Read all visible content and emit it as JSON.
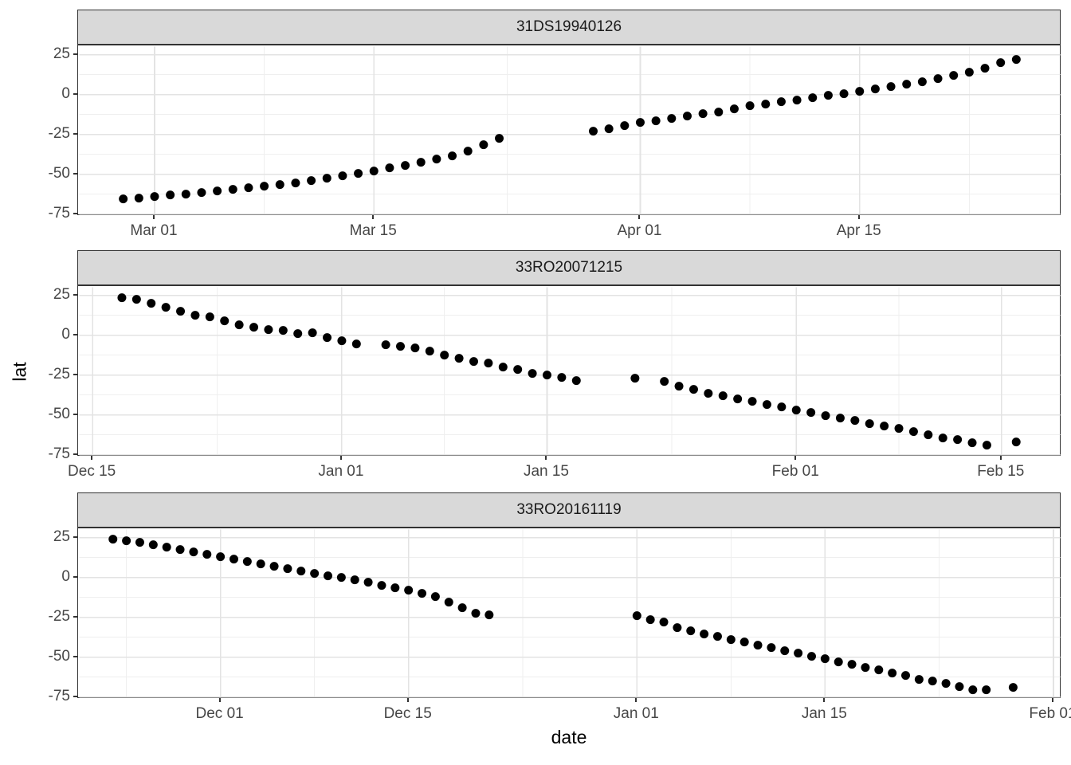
{
  "figure": {
    "ylabel": "lat",
    "xlabel": "date",
    "colors": {
      "background": "#ffffff",
      "strip_background": "#d9d9d9",
      "border": "#333333",
      "grid_major": "#e3e3e3",
      "grid_minor": "#efefef",
      "point": "#000000",
      "tick_label": "#474747",
      "axis_title": "#000000",
      "strip_text": "#1a1a1a"
    }
  },
  "chart_data": {
    "type": "scatter",
    "xlabel": "date",
    "ylabel": "lat",
    "grid": true,
    "legend": "none",
    "facet_layout": "rows",
    "y_ticks": [
      25,
      0,
      -25,
      -50,
      -75
    ],
    "y_minor_ticks": [
      12.5,
      -12.5,
      -37.5,
      -62.5
    ],
    "ylim": [
      -76,
      30
    ],
    "facets": [
      {
        "title": "31DS19940126",
        "months": [
          [
            "Feb",
            28
          ],
          [
            "Mar",
            31
          ],
          [
            "Apr",
            30
          ]
        ],
        "x_domain": [
          "Feb 24.2",
          "Apr 27.8"
        ],
        "x_ticks": [
          "Mar 01",
          "Mar 15",
          "Apr 01",
          "Apr 15"
        ],
        "points": [
          [
            "Feb 27",
            -65.5
          ],
          [
            "Feb 28",
            -65
          ],
          [
            "Mar 01",
            -64
          ],
          [
            "Mar 02",
            -63
          ],
          [
            "Mar 03",
            -62.5
          ],
          [
            "Mar 04",
            -61.5
          ],
          [
            "Mar 05",
            -60.5
          ],
          [
            "Mar 06",
            -59.5
          ],
          [
            "Mar 07",
            -58.5
          ],
          [
            "Mar 08",
            -57.5
          ],
          [
            "Mar 09",
            -56.5
          ],
          [
            "Mar 10",
            -55.5
          ],
          [
            "Mar 11",
            -54
          ],
          [
            "Mar 12",
            -52.5
          ],
          [
            "Mar 13",
            -51
          ],
          [
            "Mar 14",
            -49.5
          ],
          [
            "Mar 15",
            -48
          ],
          [
            "Mar 16",
            -46
          ],
          [
            "Mar 17",
            -44.5
          ],
          [
            "Mar 18",
            -42.5
          ],
          [
            "Mar 19",
            -40.5
          ],
          [
            "Mar 20",
            -38.5
          ],
          [
            "Mar 21",
            -35.5
          ],
          [
            "Mar 22",
            -31.5
          ],
          [
            "Mar 23",
            -27.5
          ],
          [
            "Mar 29",
            -23
          ],
          [
            "Mar 30",
            -21.5
          ],
          [
            "Mar 31",
            -19.5
          ],
          [
            "Apr 01",
            -17.5
          ],
          [
            "Apr 02",
            -16.5
          ],
          [
            "Apr 03",
            -15
          ],
          [
            "Apr 04",
            -13.5
          ],
          [
            "Apr 05",
            -12
          ],
          [
            "Apr 06",
            -11
          ],
          [
            "Apr 07",
            -9
          ],
          [
            "Apr 08",
            -7
          ],
          [
            "Apr 09",
            -6
          ],
          [
            "Apr 10",
            -4.5
          ],
          [
            "Apr 11",
            -3.5
          ],
          [
            "Apr 12",
            -2
          ],
          [
            "Apr 13",
            -0.5
          ],
          [
            "Apr 14",
            0.5
          ],
          [
            "Apr 15",
            2
          ],
          [
            "Apr 16",
            3.5
          ],
          [
            "Apr 17",
            5
          ],
          [
            "Apr 18",
            6.5
          ],
          [
            "Apr 19",
            8
          ],
          [
            "Apr 20",
            10
          ],
          [
            "Apr 21",
            12
          ],
          [
            "Apr 22",
            14
          ],
          [
            "Apr 23",
            16.5
          ],
          [
            "Apr 24",
            20
          ],
          [
            "Apr 25",
            22
          ]
        ]
      },
      {
        "title": "33RO20071215",
        "months": [
          [
            "Dec",
            31
          ],
          [
            "Jan",
            31
          ],
          [
            "Feb",
            29
          ]
        ],
        "x_domain": [
          "Dec 14.1",
          "Feb 19"
        ],
        "x_ticks": [
          "Dec 15",
          "Jan 01",
          "Jan 15",
          "Feb 01",
          "Feb 15"
        ],
        "points": [
          [
            "Dec 17",
            23.5
          ],
          [
            "Dec 18",
            22.5
          ],
          [
            "Dec 19",
            20
          ],
          [
            "Dec 20",
            17.5
          ],
          [
            "Dec 21",
            15
          ],
          [
            "Dec 22",
            12.5
          ],
          [
            "Dec 23",
            11.5
          ],
          [
            "Dec 24",
            9
          ],
          [
            "Dec 25",
            6.5
          ],
          [
            "Dec 26",
            5
          ],
          [
            "Dec 27",
            3.5
          ],
          [
            "Dec 28",
            3
          ],
          [
            "Dec 29",
            1
          ],
          [
            "Dec 30",
            1.5
          ],
          [
            "Dec 31",
            -1.5
          ],
          [
            "Jan 01",
            -3.5
          ],
          [
            "Jan 02",
            -5.5
          ],
          [
            "Jan 04",
            -6
          ],
          [
            "Jan 05",
            -7
          ],
          [
            "Jan 06",
            -8
          ],
          [
            "Jan 07",
            -10
          ],
          [
            "Jan 08",
            -12.5
          ],
          [
            "Jan 09",
            -14.5
          ],
          [
            "Jan 10",
            -16.5
          ],
          [
            "Jan 11",
            -17.5
          ],
          [
            "Jan 12",
            -20
          ],
          [
            "Jan 13",
            -21.5
          ],
          [
            "Jan 14",
            -24
          ],
          [
            "Jan 15",
            -25
          ],
          [
            "Jan 16",
            -26.5
          ],
          [
            "Jan 17",
            -28.5
          ],
          [
            "Jan 21",
            -27
          ],
          [
            "Jan 23",
            -29
          ],
          [
            "Jan 24",
            -32
          ],
          [
            "Jan 25",
            -34
          ],
          [
            "Jan 26",
            -36.5
          ],
          [
            "Jan 27",
            -38
          ],
          [
            "Jan 28",
            -40
          ],
          [
            "Jan 29",
            -41.5
          ],
          [
            "Jan 30",
            -43.5
          ],
          [
            "Jan 31",
            -45
          ],
          [
            "Feb 01",
            -47
          ],
          [
            "Feb 02",
            -48.5
          ],
          [
            "Feb 03",
            -50.5
          ],
          [
            "Feb 04",
            -52
          ],
          [
            "Feb 05",
            -53.5
          ],
          [
            "Feb 06",
            -55.5
          ],
          [
            "Feb 07",
            -57
          ],
          [
            "Feb 08",
            -58.5
          ],
          [
            "Feb 09",
            -60.5
          ],
          [
            "Feb 10",
            -62.5
          ],
          [
            "Feb 11",
            -64.5
          ],
          [
            "Feb 12",
            -65.5
          ],
          [
            "Feb 13",
            -67.5
          ],
          [
            "Feb 14",
            -69
          ],
          [
            "Feb 16",
            -67
          ]
        ]
      },
      {
        "title": "33RO20161119",
        "months": [
          [
            "Nov",
            30
          ],
          [
            "Dec",
            31
          ],
          [
            "Jan",
            31
          ],
          [
            "Feb",
            28
          ]
        ],
        "x_domain": [
          "Nov 20.5",
          "Feb 01.5"
        ],
        "x_ticks": [
          "Dec 01",
          "Dec 15",
          "Jan 01",
          "Jan 15",
          "Feb 01"
        ],
        "points": [
          [
            "Nov 23",
            24
          ],
          [
            "Nov 24",
            23
          ],
          [
            "Nov 25",
            22
          ],
          [
            "Nov 26",
            20.5
          ],
          [
            "Nov 27",
            19
          ],
          [
            "Nov 28",
            17.5
          ],
          [
            "Nov 29",
            16
          ],
          [
            "Nov 30",
            14.5
          ],
          [
            "Dec 01",
            13
          ],
          [
            "Dec 02",
            11.5
          ],
          [
            "Dec 03",
            10
          ],
          [
            "Dec 04",
            8.5
          ],
          [
            "Dec 05",
            7
          ],
          [
            "Dec 06",
            5.5
          ],
          [
            "Dec 07",
            4
          ],
          [
            "Dec 08",
            2.5
          ],
          [
            "Dec 09",
            1
          ],
          [
            "Dec 10",
            0
          ],
          [
            "Dec 11",
            -1.5
          ],
          [
            "Dec 12",
            -3
          ],
          [
            "Dec 13",
            -5
          ],
          [
            "Dec 14",
            -6.5
          ],
          [
            "Dec 15",
            -8
          ],
          [
            "Dec 16",
            -10
          ],
          [
            "Dec 17",
            -12
          ],
          [
            "Dec 18",
            -15.5
          ],
          [
            "Dec 19",
            -19
          ],
          [
            "Dec 20",
            -22.5
          ],
          [
            "Dec 21",
            -23.5
          ],
          [
            "Jan 01",
            -24
          ],
          [
            "Jan 02",
            -26.5
          ],
          [
            "Jan 03",
            -28
          ],
          [
            "Jan 04",
            -31.5
          ],
          [
            "Jan 05",
            -33.5
          ],
          [
            "Jan 06",
            -35.5
          ],
          [
            "Jan 07",
            -37
          ],
          [
            "Jan 08",
            -39
          ],
          [
            "Jan 09",
            -40.5
          ],
          [
            "Jan 10",
            -42.5
          ],
          [
            "Jan 11",
            -44
          ],
          [
            "Jan 12",
            -46
          ],
          [
            "Jan 13",
            -47.5
          ],
          [
            "Jan 14",
            -49.5
          ],
          [
            "Jan 15",
            -51
          ],
          [
            "Jan 16",
            -53
          ],
          [
            "Jan 17",
            -54.5
          ],
          [
            "Jan 18",
            -56.5
          ],
          [
            "Jan 19",
            -58
          ],
          [
            "Jan 20",
            -60
          ],
          [
            "Jan 21",
            -61.5
          ],
          [
            "Jan 22",
            -64
          ],
          [
            "Jan 23",
            -65
          ],
          [
            "Jan 24",
            -66.5
          ],
          [
            "Jan 25",
            -68.5
          ],
          [
            "Jan 26",
            -70.5
          ],
          [
            "Jan 27",
            -70.5
          ],
          [
            "Jan 29",
            -69
          ]
        ]
      }
    ]
  }
}
